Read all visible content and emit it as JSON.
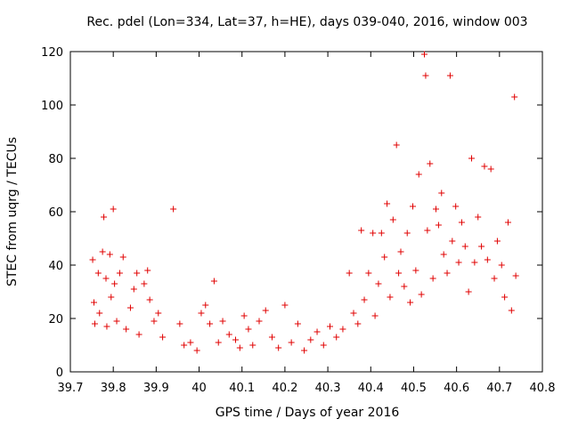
{
  "chart_data": {
    "type": "scatter",
    "title": "Rec. pdel (Lon=334, Lat=37, h=HE), days 039-040, 2016, window 003",
    "xlabel": "GPS time / Days of year 2016",
    "ylabel": "STEC from uqrg / TECUs",
    "xlim": [
      39.7,
      40.8
    ],
    "ylim": [
      0,
      120
    ],
    "xticks": [
      "39.7",
      "39.8",
      "39.9",
      "40",
      "40.1",
      "40.2",
      "40.3",
      "40.4",
      "40.5",
      "40.6",
      "40.7",
      "40.8"
    ],
    "yticks": [
      "0",
      "20",
      "40",
      "60",
      "80",
      "100",
      "120"
    ],
    "grid": false,
    "marker": "+",
    "color": "#e00000",
    "series": [
      {
        "points": [
          [
            39.752,
            42
          ],
          [
            39.755,
            26
          ],
          [
            39.757,
            18
          ],
          [
            39.765,
            37
          ],
          [
            39.768,
            22
          ],
          [
            39.775,
            45
          ],
          [
            39.778,
            58
          ],
          [
            39.783,
            35
          ],
          [
            39.785,
            17
          ],
          [
            39.792,
            44
          ],
          [
            39.795,
            28
          ],
          [
            39.8,
            61
          ],
          [
            39.803,
            33
          ],
          [
            39.808,
            19
          ],
          [
            39.815,
            37
          ],
          [
            39.823,
            43
          ],
          [
            39.83,
            16
          ],
          [
            39.84,
            24
          ],
          [
            39.848,
            31
          ],
          [
            39.855,
            37
          ],
          [
            39.86,
            14
          ],
          [
            39.872,
            33
          ],
          [
            39.88,
            38
          ],
          [
            39.885,
            27
          ],
          [
            39.895,
            19
          ],
          [
            39.905,
            22
          ],
          [
            39.915,
            13
          ],
          [
            39.94,
            61
          ],
          [
            39.955,
            18
          ],
          [
            39.965,
            10
          ],
          [
            39.98,
            11
          ],
          [
            39.995,
            8
          ],
          [
            40.005,
            22
          ],
          [
            40.015,
            25
          ],
          [
            40.025,
            18
          ],
          [
            40.035,
            34
          ],
          [
            40.045,
            11
          ],
          [
            40.055,
            19
          ],
          [
            40.07,
            14
          ],
          [
            40.085,
            12
          ],
          [
            40.095,
            9
          ],
          [
            40.105,
            21
          ],
          [
            40.115,
            16
          ],
          [
            40.125,
            10
          ],
          [
            40.14,
            19
          ],
          [
            40.155,
            23
          ],
          [
            40.17,
            13
          ],
          [
            40.185,
            9
          ],
          [
            40.2,
            25
          ],
          [
            40.215,
            11
          ],
          [
            40.23,
            18
          ],
          [
            40.245,
            8
          ],
          [
            40.26,
            12
          ],
          [
            40.275,
            15
          ],
          [
            40.29,
            10
          ],
          [
            40.305,
            17
          ],
          [
            40.32,
            13
          ],
          [
            40.335,
            16
          ],
          [
            40.35,
            37
          ],
          [
            40.36,
            22
          ],
          [
            40.37,
            18
          ],
          [
            40.378,
            53
          ],
          [
            40.385,
            27
          ],
          [
            40.395,
            37
          ],
          [
            40.405,
            52
          ],
          [
            40.41,
            21
          ],
          [
            40.418,
            33
          ],
          [
            40.425,
            52
          ],
          [
            40.432,
            43
          ],
          [
            40.438,
            63
          ],
          [
            40.445,
            28
          ],
          [
            40.452,
            57
          ],
          [
            40.46,
            85
          ],
          [
            40.465,
            37
          ],
          [
            40.47,
            45
          ],
          [
            40.478,
            32
          ],
          [
            40.485,
            52
          ],
          [
            40.492,
            26
          ],
          [
            40.498,
            62
          ],
          [
            40.505,
            38
          ],
          [
            40.512,
            74
          ],
          [
            40.518,
            29
          ],
          [
            40.525,
            119
          ],
          [
            40.528,
            111
          ],
          [
            40.532,
            53
          ],
          [
            40.538,
            78
          ],
          [
            40.545,
            35
          ],
          [
            40.552,
            61
          ],
          [
            40.558,
            55
          ],
          [
            40.565,
            67
          ],
          [
            40.57,
            44
          ],
          [
            40.578,
            37
          ],
          [
            40.585,
            111
          ],
          [
            40.59,
            49
          ],
          [
            40.598,
            62
          ],
          [
            40.605,
            41
          ],
          [
            40.612,
            56
          ],
          [
            40.62,
            47
          ],
          [
            40.628,
            30
          ],
          [
            40.635,
            80
          ],
          [
            40.642,
            41
          ],
          [
            40.65,
            58
          ],
          [
            40.658,
            47
          ],
          [
            40.665,
            77
          ],
          [
            40.672,
            42
          ],
          [
            40.68,
            76
          ],
          [
            40.688,
            35
          ],
          [
            40.695,
            49
          ],
          [
            40.705,
            40
          ],
          [
            40.712,
            28
          ],
          [
            40.72,
            56
          ],
          [
            40.728,
            23
          ],
          [
            40.735,
            103
          ],
          [
            40.738,
            36
          ]
        ]
      }
    ]
  }
}
